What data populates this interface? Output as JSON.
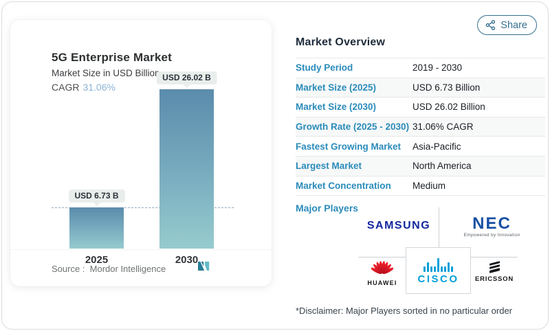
{
  "chart_data": {
    "type": "bar",
    "title": "5G Enterprise Market",
    "subtitle": "Market Size in USD Billion",
    "cagr_label": "CAGR",
    "cagr_value": "31.06%",
    "categories": [
      "2025",
      "2030"
    ],
    "values": [
      6.73,
      26.02
    ],
    "value_labels": [
      "USD 6.73 B",
      "USD 26.02 B"
    ],
    "unit": "USD Billion",
    "ylim": [
      0,
      26.02
    ],
    "reference_line_value": 6.73,
    "grid": false,
    "legend": "none",
    "bar_gradient_top": "#5b8cac",
    "bar_gradient_bottom": "#96cbce"
  },
  "chart_panel": {
    "source_label": "Source :",
    "source_value": "Mordor Intelligence"
  },
  "share_button": {
    "label": "Share"
  },
  "overview": {
    "heading": "Market Overview",
    "rows": [
      {
        "label": "Study Period",
        "value": "2019 - 2030"
      },
      {
        "label": "Market Size (2025)",
        "value": "USD 6.73 Billion"
      },
      {
        "label": "Market Size (2030)",
        "value": "USD 26.02 Billion"
      },
      {
        "label": "Growth Rate (2025 - 2030)",
        "value": "31.06% CAGR"
      },
      {
        "label": "Fastest Growing Market",
        "value": "Asia-Pacific"
      },
      {
        "label": "Largest Market",
        "value": "North America"
      },
      {
        "label": "Market Concentration",
        "value": "Medium"
      }
    ],
    "major_players_label": "Major Players",
    "players": {
      "samsung": "SAMSUNG",
      "nec": "NEC",
      "nec_tagline": "Empowered by Innovation",
      "huawei": "HUAWEI",
      "cisco": "CISCO",
      "ericsson": "ERICSSON"
    },
    "disclaimer": "*Disclaimer: Major Players sorted in no particular order"
  },
  "colors": {
    "accent_teal": "#2a8bba",
    "heading_navy": "#1d2b3a",
    "share_teal": "#36708f",
    "cagr_blue": "#8cb4d6",
    "samsung_blue": "#12279e",
    "nec_blue": "#1850a4",
    "cisco_blue": "#049fd9",
    "huawei_red": "#e60012",
    "ericsson_black": "#17181a"
  }
}
